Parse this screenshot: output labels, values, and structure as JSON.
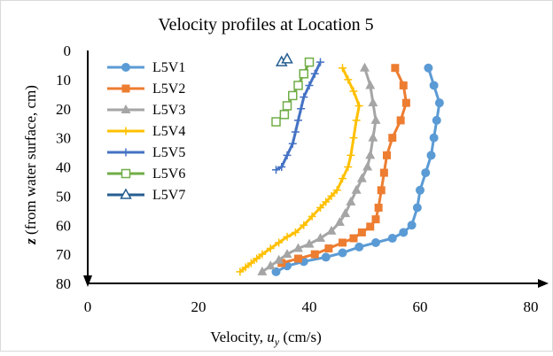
{
  "chart_data": {
    "type": "line",
    "title": "Velocity profiles at Location 5",
    "xlabel_main": "Velocity, ",
    "xlabel_var": "u",
    "xlabel_sub": "y",
    "xlabel_unit": " (cm/s)",
    "ylabel_var": "z",
    "ylabel_rest": " (from water surface, cm)",
    "xlim": [
      0,
      80
    ],
    "ylim": [
      0,
      80
    ],
    "y_inverted": true,
    "x_ticks": [
      "0",
      "20",
      "40",
      "60",
      "80"
    ],
    "y_ticks": [
      "0",
      "10",
      "20",
      "30",
      "40",
      "50",
      "60",
      "70",
      "80"
    ],
    "x_tick_values": [
      0,
      20,
      40,
      60,
      80
    ],
    "y_tick_values": [
      0,
      10,
      20,
      30,
      40,
      50,
      60,
      70,
      80
    ],
    "grid": false,
    "legend_position": "left",
    "series": [
      {
        "name": "L5V1",
        "color": "#5b9bd5",
        "marker": "circle",
        "points": [
          [
            61.5,
            6
          ],
          [
            62.5,
            12
          ],
          [
            63.5,
            18
          ],
          [
            63,
            24
          ],
          [
            62.5,
            30
          ],
          [
            62,
            36
          ],
          [
            61,
            42
          ],
          [
            60,
            48
          ],
          [
            59.5,
            54
          ],
          [
            58.5,
            60
          ],
          [
            57,
            62.5
          ],
          [
            55,
            64.5
          ],
          [
            52,
            66
          ],
          [
            49,
            67.5
          ],
          [
            46,
            69.5
          ],
          [
            43,
            71
          ],
          [
            39,
            72.5
          ],
          [
            36,
            74
          ],
          [
            34,
            76
          ]
        ]
      },
      {
        "name": "L5V2",
        "color": "#ed7d31",
        "marker": "square",
        "points": [
          [
            55.5,
            6
          ],
          [
            57,
            12
          ],
          [
            57.5,
            18
          ],
          [
            56.5,
            24
          ],
          [
            55,
            30
          ],
          [
            54,
            36
          ],
          [
            53.5,
            42
          ],
          [
            53,
            48
          ],
          [
            52.5,
            54
          ],
          [
            52,
            58
          ],
          [
            51,
            60.5
          ],
          [
            49.5,
            62.5
          ],
          [
            48,
            64.5
          ],
          [
            46,
            66
          ],
          [
            43.5,
            68
          ],
          [
            41,
            70
          ],
          [
            38,
            71.5
          ],
          [
            35,
            73
          ]
        ]
      },
      {
        "name": "L5V3",
        "color": "#a5a5a5",
        "marker": "triangle",
        "points": [
          [
            50,
            6
          ],
          [
            51,
            12
          ],
          [
            51.5,
            18
          ],
          [
            52,
            24
          ],
          [
            51.5,
            30
          ],
          [
            51,
            36
          ],
          [
            50.5,
            40
          ],
          [
            49.5,
            44
          ],
          [
            48.5,
            48
          ],
          [
            47.5,
            52
          ],
          [
            46.5,
            56
          ],
          [
            45.5,
            59
          ],
          [
            44,
            62
          ],
          [
            42,
            64.5
          ],
          [
            40,
            66.5
          ],
          [
            38,
            68
          ],
          [
            36,
            70
          ],
          [
            34.5,
            72
          ],
          [
            33,
            74
          ],
          [
            31.5,
            76
          ]
        ]
      },
      {
        "name": "L5V4",
        "color": "#ffc000",
        "marker": "plus",
        "points": [
          [
            46,
            6
          ],
          [
            47,
            10
          ],
          [
            48,
            14
          ],
          [
            49,
            19
          ],
          [
            48.5,
            24
          ],
          [
            48,
            30
          ],
          [
            47.5,
            36
          ],
          [
            47,
            40
          ],
          [
            46,
            44
          ],
          [
            45,
            48
          ],
          [
            44,
            50
          ],
          [
            43,
            52
          ],
          [
            42,
            54
          ],
          [
            40.5,
            57
          ],
          [
            39,
            60
          ],
          [
            37.5,
            62.5
          ],
          [
            36,
            64
          ],
          [
            34.5,
            66
          ],
          [
            33,
            68
          ],
          [
            31.5,
            70
          ],
          [
            30.5,
            71.5
          ],
          [
            29.5,
            73
          ],
          [
            28.5,
            74.5
          ],
          [
            27.5,
            76
          ]
        ]
      },
      {
        "name": "L5V5",
        "color": "#4472c4",
        "marker": "plus",
        "points": [
          [
            42,
            4
          ],
          [
            41,
            8
          ],
          [
            40,
            12
          ],
          [
            39,
            16
          ],
          [
            38.5,
            20
          ],
          [
            38,
            24
          ],
          [
            37.5,
            28
          ],
          [
            37,
            32
          ],
          [
            36,
            36
          ],
          [
            35,
            40
          ],
          [
            34,
            41
          ]
        ]
      },
      {
        "name": "L5V6",
        "color": "#70ad47",
        "marker": "square-open",
        "points": [
          [
            40,
            4
          ],
          [
            39,
            8
          ],
          [
            38,
            12
          ],
          [
            37,
            15.5
          ],
          [
            36,
            19
          ],
          [
            35.5,
            22
          ],
          [
            34,
            24.5
          ]
        ]
      },
      {
        "name": "L5V7",
        "color": "#255e91",
        "marker": "triangle-open",
        "points": [
          [
            35,
            4
          ],
          [
            36,
            3
          ]
        ]
      }
    ]
  }
}
